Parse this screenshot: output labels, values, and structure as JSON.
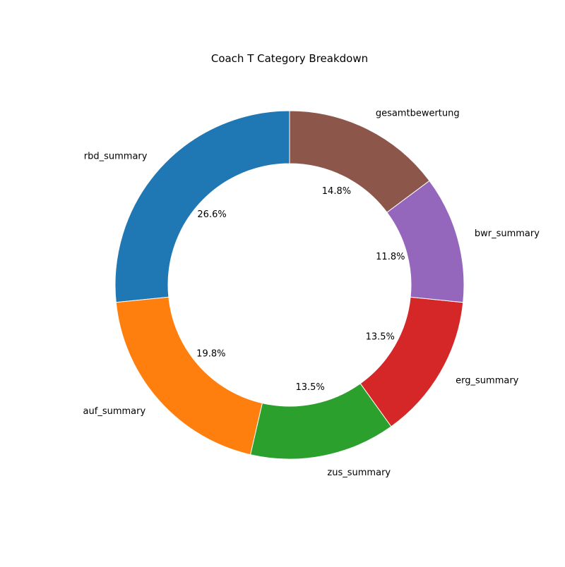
{
  "chart_data": {
    "type": "pie",
    "title": "Coach T Category Breakdown",
    "donut": true,
    "start_angle_deg": 90,
    "direction": "counterclockwise",
    "slices": [
      {
        "label": "rbd_summary",
        "value": 26.6,
        "pct_label": "26.6%",
        "color": "#1f77b4"
      },
      {
        "label": "auf_summary",
        "value": 19.8,
        "pct_label": "19.8%",
        "color": "#ff7f0e"
      },
      {
        "label": "zus_summary",
        "value": 13.5,
        "pct_label": "13.5%",
        "color": "#2ca02c"
      },
      {
        "label": "erg_summary",
        "value": 13.5,
        "pct_label": "13.5%",
        "color": "#d62728"
      },
      {
        "label": "bwr_summary",
        "value": 11.8,
        "pct_label": "11.8%",
        "color": "#9467bd"
      },
      {
        "label": "gesamtbewertung",
        "value": 14.8,
        "pct_label": "14.8%",
        "color": "#8c564b"
      }
    ]
  }
}
